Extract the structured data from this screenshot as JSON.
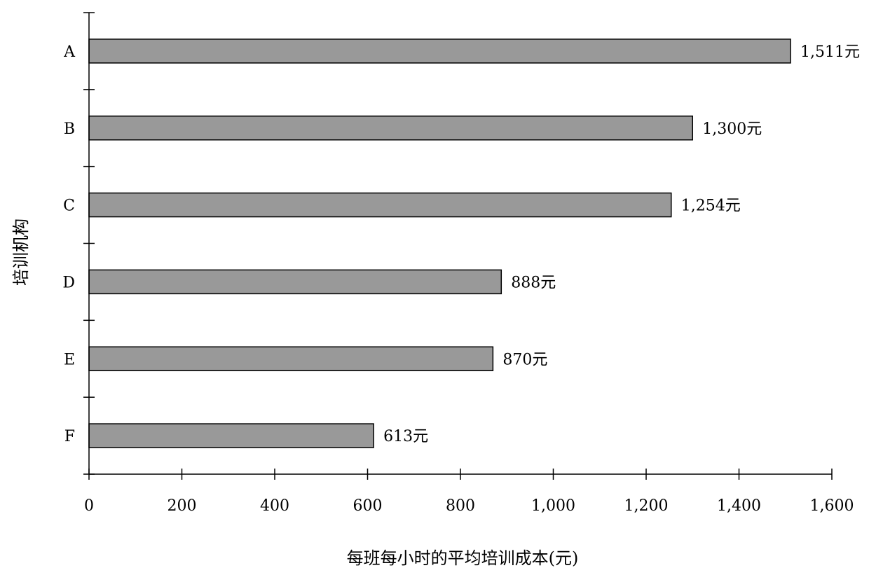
{
  "chart_data": {
    "type": "bar",
    "orientation": "horizontal",
    "title": "",
    "xlabel": "每班每小时的平均培训成本(元)",
    "ylabel": "培训机构",
    "categories": [
      "A",
      "B",
      "C",
      "D",
      "E",
      "F"
    ],
    "values": [
      1511,
      1300,
      1254,
      888,
      870,
      613
    ],
    "data_labels": [
      "1,511元",
      "1,300元",
      "1,254元",
      "888元",
      "870元",
      "613元"
    ],
    "xlim": [
      0,
      1600
    ],
    "xticks": [
      0,
      200,
      400,
      600,
      800,
      1000,
      1200,
      1400,
      1600
    ],
    "xtick_labels": [
      "0",
      "200",
      "400",
      "600",
      "800",
      "1,000",
      "1,200",
      "1,400",
      "1,600"
    ],
    "grid": false,
    "legend": "none",
    "bar_color": "#999999",
    "bar_edge_color": "#000000"
  }
}
